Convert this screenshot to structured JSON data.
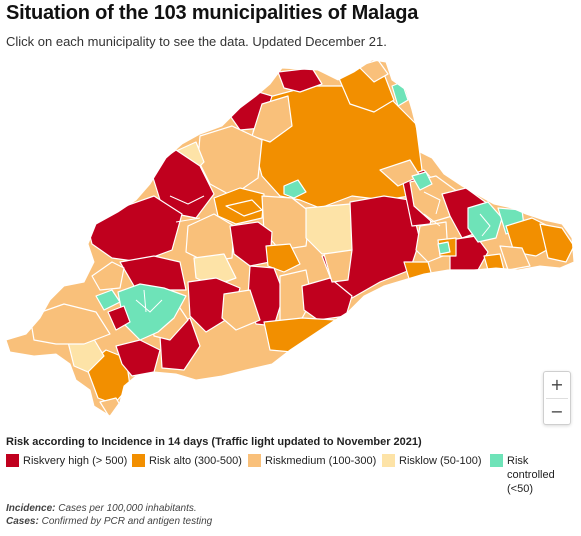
{
  "header": {
    "title": "Situation of the 103 municipalities of Malaga",
    "subtitle": "Click on each municipality to see the data. Updated December 21."
  },
  "zoom": {
    "in_label": "+",
    "out_label": "−"
  },
  "legend": {
    "title": "Risk according to Incidence in 14 days (Traffic light updated to November 2021)",
    "items": [
      {
        "label": "Riskvery high (> 500)",
        "color": "#c0001e"
      },
      {
        "label": "Risk alto (300-500)",
        "color": "#f28f00"
      },
      {
        "label": "Riskmedium (100-300)",
        "color": "#f9c07a"
      },
      {
        "label": "Risklow (50-100)",
        "color": "#fde3a7"
      },
      {
        "label": "Risk controlled (<50)",
        "color": "#6ee3b8"
      }
    ]
  },
  "notes": {
    "incidence_label": "Incidence:",
    "incidence_text": " Cases per 100,000 inhabitants.",
    "cases_label": "Cases:",
    "cases_text": " Confirmed by PCR and antigen testing"
  },
  "map": {
    "region": "Malaga province",
    "colors": {
      "very_high": "#c0001e",
      "high": "#f28f00",
      "medium": "#f9c07a",
      "low": "#fde3a7",
      "controlled": "#6ee3b8",
      "border": "#ffffff"
    }
  }
}
